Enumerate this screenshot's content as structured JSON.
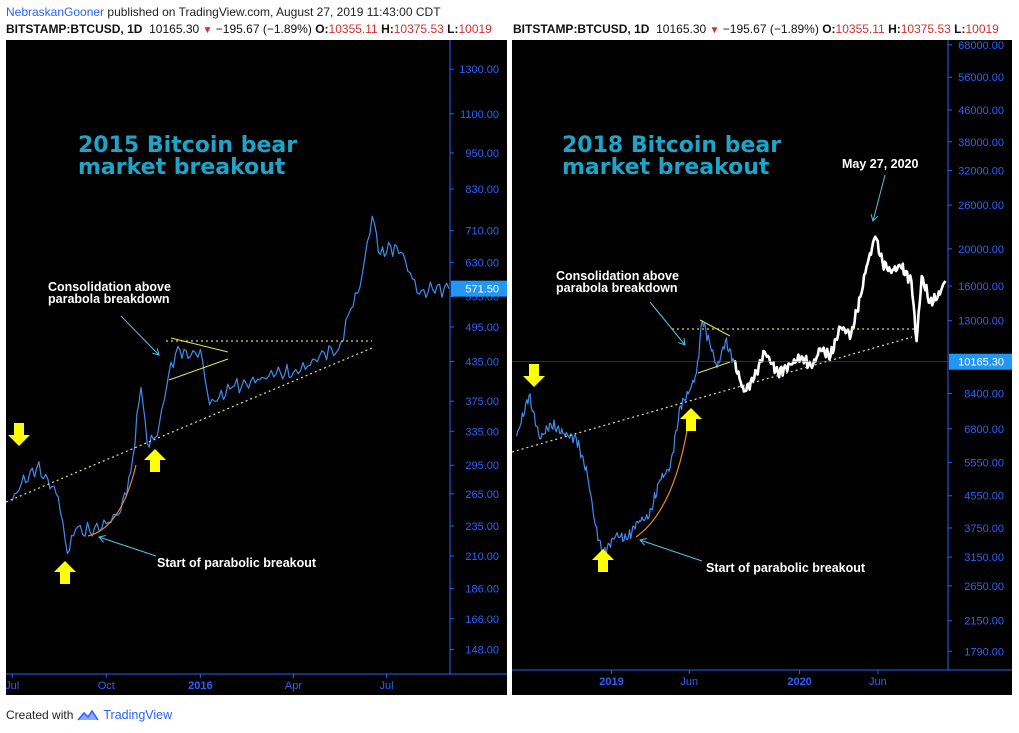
{
  "header": {
    "author": "NebraskanGooner",
    "published_text": "published on TradingView.com, August 27, 2019 11:43:00 CDT"
  },
  "symbol_bar": {
    "symbol": "BITSTAMP:BTCUSD, 1D",
    "price": "10165.30",
    "change": "−195.67 (−1.89%)",
    "o_label": "O:",
    "o_value": "10355.11",
    "h_label": "H:",
    "h_value": "10375.53",
    "l_label": "L:",
    "l_value": "10019"
  },
  "footer": {
    "created_with": "Created with",
    "brand": "TradingView"
  },
  "colors": {
    "price_line_left": "#3f8cf0",
    "price_line_right": "#3f8cf0",
    "projection": "#ffffff",
    "title": "#1fa3c7",
    "arrow": "#ffff00",
    "trend_dotted": "#e0e0a0",
    "parabola": "#e08a2a",
    "axis_text": "#2962ff",
    "last_price_bg": "#2196f3"
  },
  "chart_data": [
    {
      "type": "line",
      "title": "2015 Bitcoin bear market breakout",
      "y_scale": "log",
      "ylim": [
        135,
        1450
      ],
      "y_ticks": [
        "1300.00",
        "1100.00",
        "950.00",
        "830.00",
        "710.00",
        "630.00",
        "555.00",
        "495.00",
        "435.00",
        "375.00",
        "335.00",
        "295.00",
        "265.00",
        "235.00",
        "210.00",
        "186.00",
        "166.00",
        "148.00"
      ],
      "x_ticks": [
        {
          "label": "Jul",
          "bold": false
        },
        {
          "label": "Oct",
          "bold": false
        },
        {
          "label": "2016",
          "bold": true
        },
        {
          "label": "Apr",
          "bold": false
        },
        {
          "label": "Jul",
          "bold": false
        }
      ],
      "last_price": "571.50",
      "annotations": [
        "Consolidation above parabola breakdown",
        "Start of parabolic breakout"
      ],
      "series": [
        {
          "x": [
            "2015-07-01",
            "2015-07-10",
            "2015-07-25",
            "2015-08-05",
            "2015-08-15",
            "2015-08-24",
            "2015-09-01",
            "2015-09-15",
            "2015-10-01",
            "2015-10-15",
            "2015-10-25",
            "2015-11-04",
            "2015-11-10",
            "2015-11-20",
            "2015-12-01",
            "2015-12-10",
            "2015-12-20",
            "2016-01-01",
            "2016-01-10",
            "2016-01-15",
            "2016-02-01",
            "2016-02-15",
            "2016-03-01",
            "2016-03-15",
            "2016-04-01",
            "2016-04-15",
            "2016-05-01",
            "2016-05-15",
            "2016-05-27",
            "2016-06-05",
            "2016-06-17",
            "2016-06-25",
            "2016-07-05",
            "2016-07-15",
            "2016-08-02",
            "2016-08-15",
            "2016-08-31"
          ],
          "values": [
            258,
            275,
            292,
            280,
            262,
            212,
            232,
            230,
            237,
            248,
            288,
            395,
            320,
            330,
            415,
            460,
            440,
            455,
            370,
            375,
            395,
            400,
            410,
            415,
            418,
            428,
            450,
            455,
            530,
            575,
            750,
            650,
            670,
            655,
            560,
            570,
            571.5
          ]
        }
      ]
    },
    {
      "type": "line",
      "title": "2018 Bitcoin bear market breakout",
      "y_scale": "log",
      "ylim": [
        1600,
        70000
      ],
      "y_ticks": [
        "68000.00",
        "56000.00",
        "46000.00",
        "38000.00",
        "32000.00",
        "26000.00",
        "20000.00",
        "16000.00",
        "13000.00",
        "8400.00",
        "6800.00",
        "5550.00",
        "4550.00",
        "3750.00",
        "3150.00",
        "2650.00",
        "2150.00",
        "1790.00"
      ],
      "x_ticks": [
        {
          "label": "2019",
          "bold": true
        },
        {
          "label": "Jun",
          "bold": false
        },
        {
          "label": "2020",
          "bold": true
        },
        {
          "label": "Jun",
          "bold": false
        }
      ],
      "last_price": "10165.30",
      "annotations": [
        "May 27, 2020",
        "Consolidation above parabola breakdown",
        "Start of parabolic breakout"
      ],
      "series": [
        {
          "name": "",
          "x": [
            "2018-07-01",
            "2018-07-25",
            "2018-08-15",
            "2018-09-05",
            "2018-10-01",
            "2018-10-25",
            "2018-11-15",
            "2018-12-01",
            "2018-12-15",
            "2019-01-10",
            "2019-02-01",
            "2019-02-20",
            "2019-03-15",
            "2019-04-05",
            "2019-04-25",
            "2019-05-15",
            "2019-06-01",
            "2019-06-15",
            "2019-06-26",
            "2019-07-10",
            "2019-07-25",
            "2019-08-10",
            "2019-08-27"
          ],
          "values": [
            6500,
            8300,
            6400,
            7000,
            6600,
            6400,
            5200,
            3800,
            3200,
            3600,
            3500,
            3900,
            4000,
            5000,
            5400,
            7800,
            8500,
            9500,
            13000,
            11500,
            9800,
            11500,
            10165.3
          ]
        },
        {
          "name": "",
          "x": [
            "2019-08-27",
            "2019-09-15",
            "2019-10-05",
            "2019-10-25",
            "2019-11-20",
            "2019-12-15",
            "2020-01-05",
            "2020-01-25",
            "2020-02-10",
            "2020-03-01",
            "2020-03-20",
            "2020-04-10",
            "2020-04-28",
            "2020-05-10",
            "2020-05-27",
            "2020-06-10",
            "2020-06-25",
            "2020-07-15",
            "2020-08-05",
            "2020-08-15",
            "2020-08-25",
            "2020-09-10",
            "2020-09-25",
            "2020-10-10"
          ],
          "values": [
            10165.3,
            8500,
            9200,
            10800,
            9500,
            10000,
            10500,
            9800,
            11000,
            10500,
            12500,
            12000,
            15000,
            18000,
            21500,
            18500,
            17500,
            18000,
            16500,
            11500,
            17000,
            14500,
            15000,
            16500
          ]
        }
      ]
    }
  ]
}
